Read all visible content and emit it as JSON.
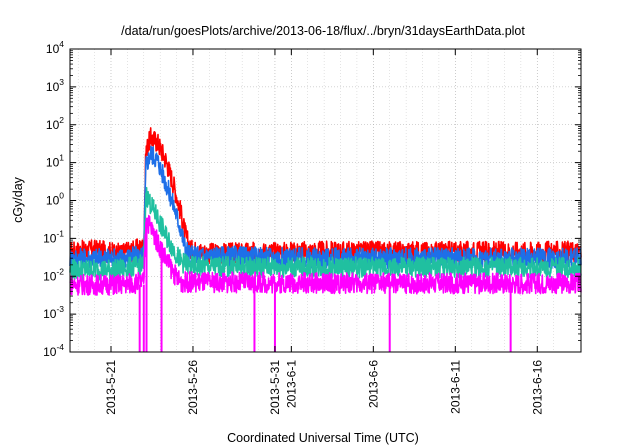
{
  "chart_data": {
    "type": "line",
    "title": "/data/run/goesPlots/archive/2013-06-18/flux/../bryn/31daysEarthData.plot",
    "xlabel": "Coordinated Universal Time (UTC)",
    "ylabel": "cGy/day",
    "yscale": "log",
    "ylim": [
      0.0001,
      10000
    ],
    "xlim": [
      "2013-05-18T12:00",
      "2013-06-18T16:00"
    ],
    "grid": true,
    "y_ticks": [
      {
        "base": "10",
        "exp": "-4",
        "value": 0.0001
      },
      {
        "base": "10",
        "exp": "-3",
        "value": 0.001
      },
      {
        "base": "10",
        "exp": "-2",
        "value": 0.01
      },
      {
        "base": "10",
        "exp": "-1",
        "value": 0.1
      },
      {
        "base": "10",
        "exp": "0",
        "value": 1
      },
      {
        "base": "10",
        "exp": "1",
        "value": 10
      },
      {
        "base": "10",
        "exp": "2",
        "value": 100
      },
      {
        "base": "10",
        "exp": "3",
        "value": 1000
      },
      {
        "base": "10",
        "exp": "4",
        "value": 10000
      }
    ],
    "x_ticks": [
      {
        "label": "2013-5-21",
        "date": "2013-05-21"
      },
      {
        "label": "2013-5-26",
        "date": "2013-05-26"
      },
      {
        "label": "2013-5-31",
        "date": "2013-05-31"
      },
      {
        "label": "2013-6-1",
        "date": "2013-06-01"
      },
      {
        "label": "2013-6-6",
        "date": "2013-06-06"
      },
      {
        "label": "2013-6-11",
        "date": "2013-06-11"
      },
      {
        "label": "2013-6-16",
        "date": "2013-06-16"
      }
    ],
    "series": [
      {
        "color": "#ff0000",
        "points": [
          [
            "2013-05-18T12:00",
            0.045
          ],
          [
            "2013-05-20T00:00",
            0.05
          ],
          [
            "2013-05-21T12:00",
            0.04
          ],
          [
            "2013-05-22T12:00",
            0.05
          ],
          [
            "2013-05-23T00:00",
            0.06
          ],
          [
            "2013-05-23T03:00",
            20
          ],
          [
            "2013-05-23T10:00",
            45
          ],
          [
            "2013-05-23T20:00",
            35
          ],
          [
            "2013-05-24T08:00",
            12
          ],
          [
            "2013-05-24T20:00",
            2.5
          ],
          [
            "2013-05-25T06:00",
            0.5
          ],
          [
            "2013-05-25T12:00",
            0.15
          ],
          [
            "2013-05-25T20:00",
            0.05
          ],
          [
            "2013-05-27T00:00",
            0.04
          ],
          [
            "2013-06-02T00:00",
            0.045
          ],
          [
            "2013-06-08T00:00",
            0.045
          ],
          [
            "2013-06-14T00:00",
            0.045
          ],
          [
            "2013-06-18T16:00",
            0.045
          ]
        ]
      },
      {
        "color": "#1e6fe8",
        "points": [
          [
            "2013-05-18T12:00",
            0.03
          ],
          [
            "2013-05-21T12:00",
            0.03
          ],
          [
            "2013-05-23T00:00",
            0.035
          ],
          [
            "2013-05-23T03:00",
            8
          ],
          [
            "2013-05-23T10:00",
            18
          ],
          [
            "2013-05-23T20:00",
            12
          ],
          [
            "2013-05-24T08:00",
            3
          ],
          [
            "2013-05-24T20:00",
            0.7
          ],
          [
            "2013-05-25T06:00",
            0.18
          ],
          [
            "2013-05-25T12:00",
            0.06
          ],
          [
            "2013-05-25T20:00",
            0.035
          ],
          [
            "2013-06-02T00:00",
            0.03
          ],
          [
            "2013-06-10T00:00",
            0.03
          ],
          [
            "2013-06-18T16:00",
            0.03
          ]
        ]
      },
      {
        "color": "#20c0a0",
        "points": [
          [
            "2013-05-18T12:00",
            0.015
          ],
          [
            "2013-05-21T12:00",
            0.015
          ],
          [
            "2013-05-23T00:00",
            0.02
          ],
          [
            "2013-05-23T03:00",
            1.5
          ],
          [
            "2013-05-23T10:00",
            0.8
          ],
          [
            "2013-05-23T20:00",
            0.35
          ],
          [
            "2013-05-24T08:00",
            0.12
          ],
          [
            "2013-05-24T20:00",
            0.05
          ],
          [
            "2013-05-25T06:00",
            0.025
          ],
          [
            "2013-05-25T20:00",
            0.018
          ],
          [
            "2013-06-05T00:00",
            0.017
          ],
          [
            "2013-06-18T16:00",
            0.017
          ]
        ]
      },
      {
        "color": "#ff00ff",
        "points": [
          [
            "2013-05-18T12:00",
            0.006
          ],
          [
            "2013-05-21T12:00",
            0.006
          ],
          [
            "2013-05-23T00:00",
            0.007
          ],
          [
            "2013-05-23T03:00",
            0.35
          ],
          [
            "2013-05-23T10:00",
            0.2
          ],
          [
            "2013-05-23T20:00",
            0.08
          ],
          [
            "2013-05-24T08:00",
            0.03
          ],
          [
            "2013-05-24T20:00",
            0.012
          ],
          [
            "2013-05-25T06:00",
            0.007
          ],
          [
            "2013-06-05T00:00",
            0.0065
          ],
          [
            "2013-06-18T16:00",
            0.0065
          ]
        ],
        "dropouts": [
          "2013-05-22T18:00",
          "2013-05-23T00:00",
          "2013-05-23T04:00",
          "2013-05-24T02:00",
          "2013-05-29T18:00",
          "2013-05-31T00:00",
          "2013-06-07T00:00",
          "2013-06-14T09:00"
        ],
        "dropout_min": 0.0001
      }
    ]
  }
}
